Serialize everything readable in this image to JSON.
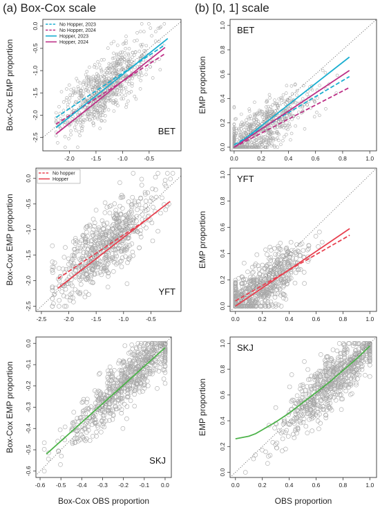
{
  "titles": {
    "left": "(a) Box-Cox scale",
    "right": "(b) [0, 1] scale"
  },
  "chart_data": [
    {
      "type": "scatter",
      "species": "BET",
      "ylabel": "Box-Cox EMP proportion",
      "xlabel": "",
      "xlim": [
        -2.5,
        0.1
      ],
      "ylim": [
        -2.8,
        0.15
      ],
      "xticks": [
        -2.0,
        -1.5,
        -1.0,
        -0.5
      ],
      "xtick_labels": [
        "-2.0",
        "-1.5",
        "-1.0",
        "-0.5"
      ],
      "yticks": [
        0.0,
        -0.5,
        -1.0,
        -1.5,
        -2.0,
        -2.5
      ],
      "ytick_labels": [
        "0.0",
        "-0.5",
        "-1.0",
        "-1.5",
        "-2.0",
        "-2.5"
      ],
      "legend": {
        "position": "top-left",
        "entries": [
          "No Hopper, 2023",
          "No Hopper, 2024",
          "Hopper, 2023",
          "Hopper, 2024"
        ]
      },
      "series": [
        {
          "name": "No Hopper, 2023",
          "color": "#1aaed0",
          "dash": true,
          "x": [
            -2.25,
            -0.2
          ],
          "y": [
            -2.05,
            -0.42
          ]
        },
        {
          "name": "No Hopper, 2024",
          "color": "#bd2f86",
          "dash": true,
          "x": [
            -2.25,
            -0.2
          ],
          "y": [
            -2.2,
            -0.62
          ]
        },
        {
          "name": "Hopper, 2023",
          "color": "#1aaed0",
          "dash": false,
          "x": [
            -2.25,
            -0.15
          ],
          "y": [
            -2.28,
            -0.28
          ]
        },
        {
          "name": "Hopper, 2024",
          "color": "#bd2f86",
          "dash": false,
          "x": [
            -2.25,
            -0.2
          ],
          "y": [
            -2.42,
            -0.48
          ]
        }
      ],
      "diagonal": true,
      "point_radius": 2,
      "scatter": {
        "n": 720,
        "xmin": -2.25,
        "xmax": -0.15,
        "xmean": -1.35,
        "xsd": 0.42,
        "slope": 0.88,
        "intercept": -0.2,
        "noise": 0.32,
        "ymin": -2.72,
        "ymax": 0.05
      }
    },
    {
      "type": "scatter",
      "species": "BET",
      "ylabel": "EMP proportion",
      "xlabel": "",
      "xlim": [
        -0.03,
        1.05
      ],
      "ylim": [
        -0.03,
        1.05
      ],
      "xticks": [
        0.0,
        0.2,
        0.4,
        0.6,
        0.8,
        1.0
      ],
      "xtick_labels": [
        "0.0",
        "0.2",
        "0.4",
        "0.6",
        "0.8",
        "1.0"
      ],
      "yticks": [
        0.0,
        0.2,
        0.4,
        0.6,
        0.8,
        1.0
      ],
      "ytick_labels": [
        "0.0",
        "0.2",
        "0.4",
        "0.6",
        "0.8",
        "1.0"
      ],
      "label_position": "top-left",
      "series": [
        {
          "name": "No Hopper, 2023",
          "color": "#1aaed0",
          "dash": true,
          "x": [
            0.0,
            0.85
          ],
          "y": [
            0.02,
            0.58
          ]
        },
        {
          "name": "No Hopper, 2024",
          "color": "#bd2f86",
          "dash": true,
          "x": [
            0.0,
            0.85
          ],
          "y": [
            0.0,
            0.49
          ]
        },
        {
          "name": "Hopper, 2023",
          "color": "#1aaed0",
          "dash": false,
          "x": [
            0.0,
            0.85
          ],
          "y": [
            0.0,
            0.74
          ]
        },
        {
          "name": "Hopper, 2024",
          "color": "#bd2f86",
          "dash": false,
          "x": [
            0.0,
            0.85
          ],
          "y": [
            0.0,
            0.63
          ]
        }
      ],
      "diagonal": true,
      "point_radius": 2,
      "scatter": {
        "n": 720,
        "xmin": 0.0,
        "xmax": 0.85,
        "xmean": 0.18,
        "xsd": 0.18,
        "slope": 0.7,
        "intercept": 0.0,
        "noise": 0.1,
        "ymin": 0.0,
        "ymax": 0.96
      }
    },
    {
      "type": "scatter",
      "species": "YFT",
      "ylabel": "Box-Cox EMP proportion",
      "xlabel": "",
      "xlim": [
        -2.6,
        0.05
      ],
      "ylim": [
        -2.6,
        0.2
      ],
      "xticks": [
        -2.5,
        -2.0,
        -1.5,
        -1.0,
        -0.5
      ],
      "xtick_labels": [
        "-2.5",
        "-2.0",
        "-1.5",
        "-1.0",
        "-0.5"
      ],
      "yticks": [
        0.0,
        -0.5,
        -1.0,
        -1.5,
        -2.0,
        -2.5
      ],
      "ytick_labels": [
        "0.0",
        "-0.5",
        "-1.0",
        "-1.5",
        "-2.0",
        "-2.5"
      ],
      "legend": {
        "position": "top-left",
        "entries": [
          "No hopper",
          "Hopper"
        ]
      },
      "series": [
        {
          "name": "No hopper",
          "color": "#e8404f",
          "dash": true,
          "x": [
            -2.2,
            -0.5
          ],
          "y": [
            -1.96,
            -0.75
          ]
        },
        {
          "name": "Hopper",
          "color": "#e8404f",
          "dash": false,
          "x": [
            -2.2,
            -0.15
          ],
          "y": [
            -2.15,
            -0.45
          ]
        }
      ],
      "diagonal": true,
      "point_radius": 3,
      "scatter": {
        "n": 620,
        "xmin": -2.3,
        "xmax": -0.1,
        "xmean": -1.35,
        "xsd": 0.45,
        "slope": 0.85,
        "intercept": -0.15,
        "noise": 0.33,
        "ymin": -2.5,
        "ymax": 0.1
      }
    },
    {
      "type": "scatter",
      "species": "YFT",
      "ylabel": "EMP proportion",
      "xlabel": "",
      "xlim": [
        -0.04,
        1.05
      ],
      "ylim": [
        -0.04,
        1.05
      ],
      "xticks": [
        0.0,
        0.2,
        0.4,
        0.6,
        0.8,
        1.0
      ],
      "xtick_labels": [
        "0.0",
        "0.2",
        "0.4",
        "0.6",
        "0.8",
        "1.0"
      ],
      "yticks": [
        0.0,
        0.2,
        0.4,
        0.6,
        0.8,
        1.0
      ],
      "ytick_labels": [
        "0.0",
        "0.2",
        "0.4",
        "0.6",
        "0.8",
        "1.0"
      ],
      "label_position": "top-left",
      "series": [
        {
          "name": "No hopper",
          "color": "#e8404f",
          "dash": true,
          "x": [
            0.0,
            0.85
          ],
          "y": [
            0.04,
            0.54
          ]
        },
        {
          "name": "Hopper",
          "color": "#e8404f",
          "dash": false,
          "x": [
            0.0,
            0.85
          ],
          "y": [
            0.0,
            0.59
          ]
        }
      ],
      "diagonal": true,
      "point_radius": 3,
      "scatter": {
        "n": 620,
        "xmin": 0.0,
        "xmax": 0.85,
        "xmean": 0.2,
        "xsd": 0.17,
        "slope": 0.68,
        "intercept": 0.02,
        "noise": 0.1,
        "ymin": 0.0,
        "ymax": 0.85
      }
    },
    {
      "type": "scatter",
      "species": "SKJ",
      "ylabel": "Box-Cox EMP proportion",
      "xlabel": "Box-Cox OBS proportion",
      "xlim": [
        -0.62,
        0.03
      ],
      "ylim": [
        -0.63,
        0.03
      ],
      "xticks": [
        -0.6,
        -0.5,
        -0.4,
        -0.3,
        -0.2,
        -0.1,
        0.0
      ],
      "xtick_labels": [
        "-0.6",
        "-0.5",
        "-0.4",
        "-0.3",
        "-0.2",
        "-0.1",
        "0.0"
      ],
      "yticks": [
        0.0,
        -0.1,
        -0.2,
        -0.3,
        -0.4,
        -0.5,
        -0.6
      ],
      "ytick_labels": [
        "0.0",
        "-0.1",
        "-0.2",
        "-0.3",
        "-0.4",
        "-0.5",
        "-0.6"
      ],
      "series": [
        {
          "name": "",
          "color": "#4db34a",
          "dash": false,
          "x": [
            -0.57,
            0.0
          ],
          "y": [
            -0.52,
            -0.02
          ]
        }
      ],
      "diagonal": true,
      "point_radius": 3,
      "scatter": {
        "n": 700,
        "xmin": -0.58,
        "xmax": 0.0,
        "xmean": -0.18,
        "xsd": 0.14,
        "slope": 0.9,
        "intercept": -0.01,
        "noise": 0.06,
        "ymin": -0.6,
        "ymax": 0.0
      }
    },
    {
      "type": "scatter",
      "species": "SKJ",
      "ylabel": "EMP proportion",
      "xlabel": "OBS proportion",
      "xlim": [
        -0.04,
        1.05
      ],
      "ylim": [
        -0.04,
        1.05
      ],
      "xticks": [
        0.0,
        0.2,
        0.4,
        0.6,
        0.8,
        1.0
      ],
      "xtick_labels": [
        "0.0",
        "0.2",
        "0.4",
        "0.6",
        "0.8",
        "1.0"
      ],
      "yticks": [
        0.0,
        0.2,
        0.4,
        0.6,
        0.8,
        1.0
      ],
      "ytick_labels": [
        "0.0",
        "0.2",
        "0.4",
        "0.6",
        "0.8",
        "1.0"
      ],
      "label_position": "top-left",
      "series": [
        {
          "name": "",
          "color": "#4db34a",
          "dash": false,
          "x": [
            0.0,
            0.05,
            0.1,
            0.15,
            0.2,
            0.3,
            0.4,
            0.5,
            0.6,
            0.7,
            0.8,
            0.9,
            1.0
          ],
          "y": [
            0.26,
            0.27,
            0.28,
            0.3,
            0.33,
            0.39,
            0.46,
            0.54,
            0.62,
            0.7,
            0.79,
            0.88,
            0.98
          ]
        }
      ],
      "diagonal": true,
      "point_radius": 3,
      "scatter": {
        "n": 700,
        "xmin": 0.02,
        "xmax": 1.0,
        "xmean": 0.72,
        "xsd": 0.2,
        "slope": 0.95,
        "intercept": 0.02,
        "noise": 0.1,
        "ymin": 0.0,
        "ymax": 1.0
      }
    }
  ]
}
